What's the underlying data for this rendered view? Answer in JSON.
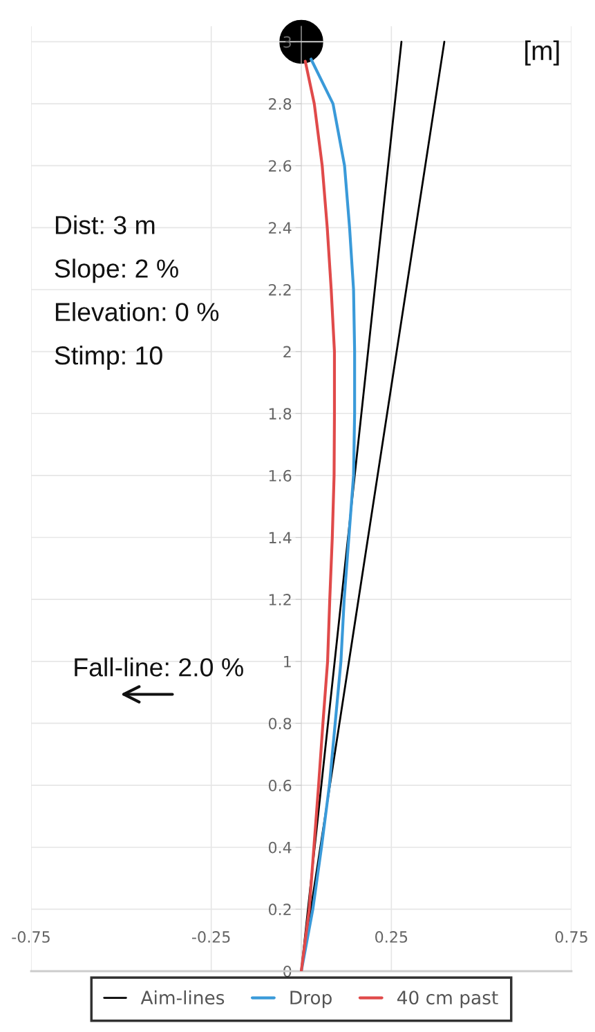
{
  "chart_data": {
    "type": "line",
    "annotations": [
      "[m]",
      "Dist: 3 m",
      "Slope: 2 %",
      "Elevation: 0 %",
      "Stimp: 10",
      "Fall-line: 2.0 %"
    ],
    "series": [
      {
        "name": "Aim-lines",
        "color": "#000000",
        "x": [
          0,
          0.278
        ],
        "values": [
          0,
          3
        ]
      },
      {
        "color": "#000000",
        "x": [
          0,
          0.397
        ],
        "values": [
          0,
          3
        ]
      },
      {
        "name": "Drop",
        "color": "#3a9ad9",
        "x": [
          0,
          0.032,
          0.056,
          0.078,
          0.094,
          0.11,
          0.119,
          0.132,
          0.145,
          0.148,
          0.148,
          0.145,
          0.134,
          0.12,
          0.088,
          0.027
        ],
        "values": [
          0,
          0.2,
          0.4,
          0.6,
          0.8,
          1.0,
          1.2,
          1.4,
          1.6,
          1.8,
          2.0,
          2.2,
          2.4,
          2.6,
          2.8,
          2.944
        ]
      },
      {
        "name": "40 cm past",
        "color": "#e04a4a",
        "x": [
          0,
          0.022,
          0.035,
          0.048,
          0.06,
          0.073,
          0.079,
          0.086,
          0.091,
          0.092,
          0.092,
          0.083,
          0.072,
          0.058,
          0.036,
          0.011
        ],
        "values": [
          0,
          0.2,
          0.4,
          0.6,
          0.8,
          1.0,
          1.2,
          1.4,
          1.6,
          1.8,
          2.0,
          2.2,
          2.4,
          2.6,
          2.8,
          2.937
        ]
      },
      {
        "type": "scatter",
        "color": "#000000",
        "marker": "circle",
        "x": [
          0
        ],
        "values": [
          3
        ]
      }
    ],
    "xlim": [
      -0.75,
      0.75
    ],
    "xticks": [
      -0.75,
      -0.25,
      0.25,
      0.75
    ],
    "ylim": [
      0,
      3.05
    ],
    "yticks": [
      0,
      0.2,
      0.4,
      0.6,
      0.8,
      1,
      1.2,
      1.4,
      1.6,
      1.8,
      2,
      2.2,
      2.4,
      2.6,
      2.8,
      3
    ],
    "grid": true,
    "legend": "bottom",
    "line_style": "solid"
  }
}
